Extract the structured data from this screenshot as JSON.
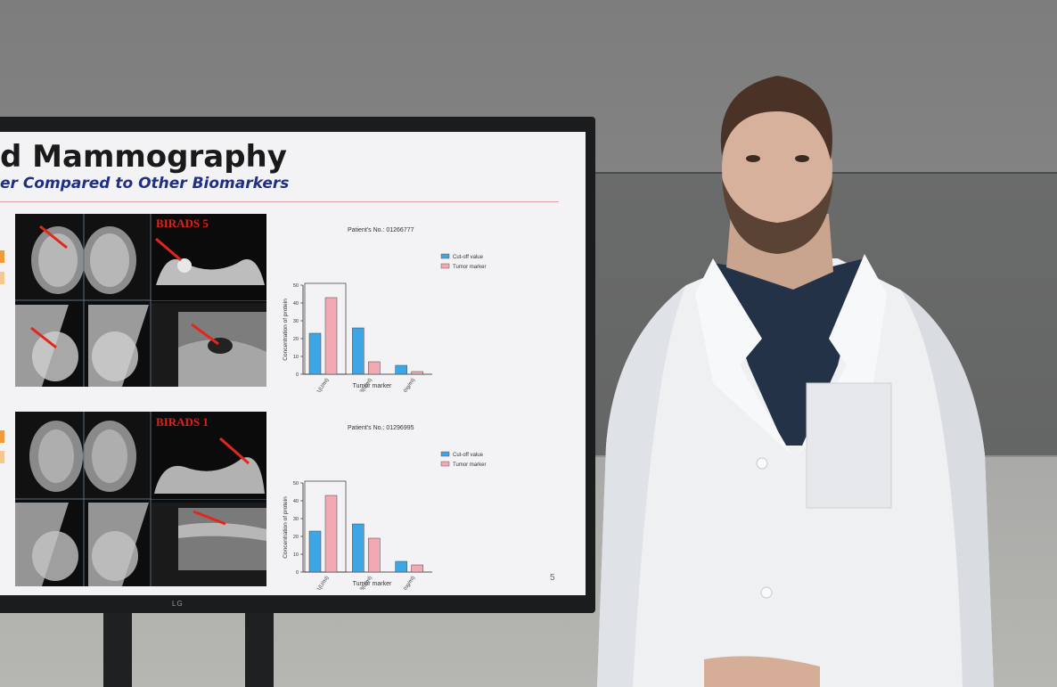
{
  "slide": {
    "title": "d Mammography",
    "subtitle": "er Compared to Other Biomarkers",
    "page_number": "5",
    "birads_top": "BIRADS 5",
    "birads_bottom": "BIRADS 1"
  },
  "tv": {
    "brand": "LG"
  },
  "chart_data": [
    {
      "type": "bar",
      "title": "Patient's No.: 01266777",
      "xlabel": "Tumor marker",
      "ylabel": "Concentration of protein",
      "categories": [
        "Trx1(U/ml)",
        "CA15-3(U/ml)",
        "CEA(ng/ml)"
      ],
      "series": [
        {
          "name": "Cut-off value",
          "values": [
            23,
            26,
            5
          ],
          "color": "#3fa6e6"
        },
        {
          "name": "Tumor marker",
          "values": [
            43,
            7,
            1.5
          ],
          "color": "#f1a9b4"
        }
      ],
      "ylim": [
        0,
        50
      ],
      "yticks": [
        0,
        10,
        20,
        30,
        40,
        50
      ],
      "legend": "top-right"
    },
    {
      "type": "bar",
      "title": "Patient's No.: 01296995",
      "xlabel": "Tumor marker",
      "ylabel": "Concentration of protein",
      "categories": [
        "Trx1(U/ml)",
        "CA15-3(U/ml)",
        "CEA(ng/ml)"
      ],
      "series": [
        {
          "name": "Cut-off value",
          "values": [
            23,
            27,
            6
          ],
          "color": "#3fa6e6"
        },
        {
          "name": "Tumor marker",
          "values": [
            43,
            19,
            4
          ],
          "color": "#f1a9b4"
        }
      ],
      "ylim": [
        0,
        50
      ],
      "yticks": [
        0,
        10,
        20,
        30,
        40,
        50
      ],
      "legend": "top-right"
    }
  ]
}
